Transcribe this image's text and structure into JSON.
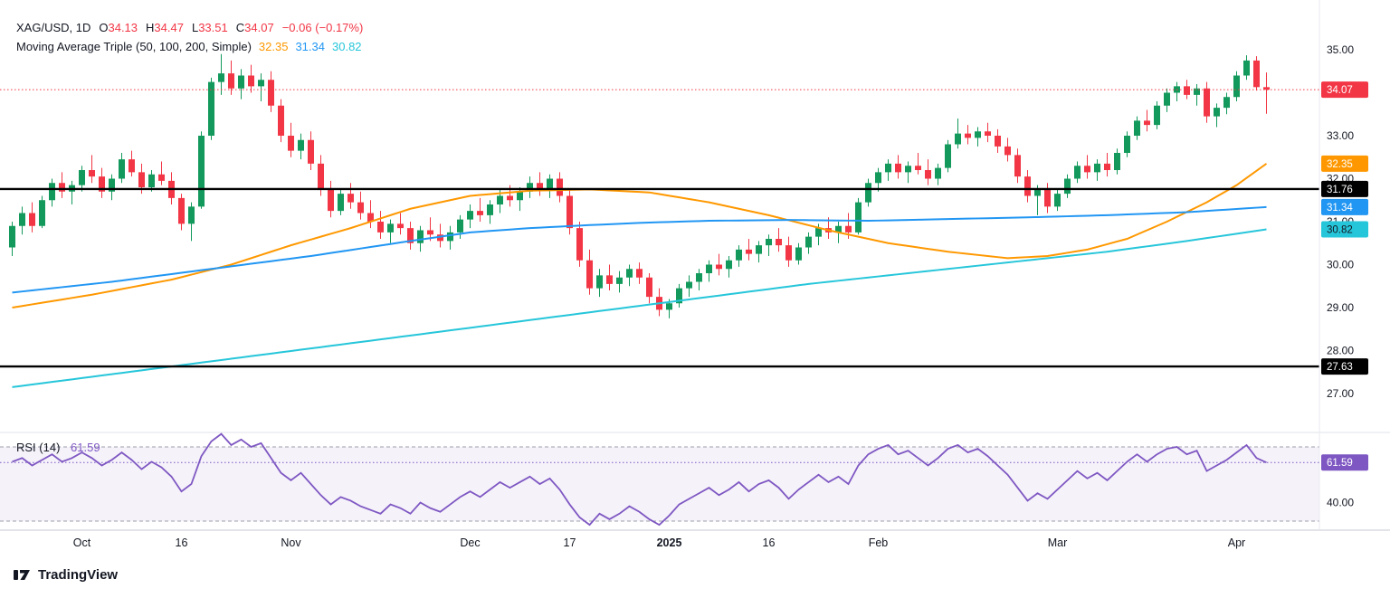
{
  "header": {
    "symbol": "XAG/USD, 1D",
    "ohlc": {
      "o_label": "O",
      "o": "34.13",
      "h_label": "H",
      "h": "34.47",
      "l_label": "L",
      "l": "33.51",
      "c_label": "C",
      "c": "34.07",
      "change": "−0.06 (−0.17%)"
    },
    "ma_label": "Moving Average Triple (50, 100, 200, Simple)",
    "ma_values": [
      "32.35",
      "31.34",
      "30.82"
    ]
  },
  "rsi_legend": {
    "label": "RSI (14)",
    "value": "61.59"
  },
  "footer": {
    "logo_text": "TradingView"
  },
  "chart_data": {
    "type": "candlestick",
    "title": "XAG/USD, 1D with Moving Average Triple (50, 100, 200, Simple) and RSI (14)",
    "price_axis_ticks": [
      35.0,
      34.0,
      33.0,
      32.0,
      31.0,
      30.0,
      29.0,
      28.0,
      27.0
    ],
    "x_labels": [
      {
        "t": "Oct",
        "i": 7
      },
      {
        "t": "16",
        "i": 17
      },
      {
        "t": "Nov",
        "i": 28
      },
      {
        "t": "Dec",
        "i": 46
      },
      {
        "t": "17",
        "i": 56
      },
      {
        "t": "2025",
        "i": 66,
        "bold": true
      },
      {
        "t": "16",
        "i": 76
      },
      {
        "t": "Feb",
        "i": 87
      },
      {
        "t": "Mar",
        "i": 105
      },
      {
        "t": "Apr",
        "i": 123
      }
    ],
    "colors": {
      "up": "#12995b",
      "down": "#f23645",
      "ma50": "#ff9800",
      "ma100": "#2196f3",
      "ma200": "#26c6da",
      "rsi": "#7e57c2",
      "level": "#000000",
      "last_price": "#f23645",
      "axis_text": "#131722"
    },
    "last_price_line": {
      "value": 34.07
    },
    "levels": [
      31.76,
      27.63
    ],
    "candles": [
      [
        30.4,
        31.0,
        30.2,
        30.9
      ],
      [
        30.9,
        31.35,
        30.7,
        31.2
      ],
      [
        31.2,
        31.45,
        30.75,
        30.9
      ],
      [
        30.9,
        31.6,
        30.85,
        31.5
      ],
      [
        31.5,
        32.0,
        31.35,
        31.9
      ],
      [
        31.9,
        32.15,
        31.55,
        31.7
      ],
      [
        31.7,
        31.95,
        31.4,
        31.85
      ],
      [
        31.85,
        32.3,
        31.7,
        32.2
      ],
      [
        32.2,
        32.55,
        31.9,
        32.05
      ],
      [
        32.05,
        32.25,
        31.55,
        31.7
      ],
      [
        31.7,
        32.1,
        31.5,
        32.0
      ],
      [
        32.0,
        32.6,
        31.9,
        32.45
      ],
      [
        32.45,
        32.65,
        32.05,
        32.15
      ],
      [
        32.15,
        32.35,
        31.65,
        31.8
      ],
      [
        31.8,
        32.2,
        31.7,
        32.1
      ],
      [
        32.1,
        32.4,
        31.85,
        31.95
      ],
      [
        31.95,
        32.15,
        31.4,
        31.55
      ],
      [
        31.55,
        31.65,
        30.8,
        30.95
      ],
      [
        30.95,
        31.45,
        30.55,
        31.35
      ],
      [
        31.35,
        33.1,
        31.3,
        33.0
      ],
      [
        33.0,
        34.35,
        32.9,
        34.25
      ],
      [
        34.25,
        34.9,
        33.95,
        34.45
      ],
      [
        34.45,
        34.75,
        33.95,
        34.1
      ],
      [
        34.1,
        34.55,
        33.85,
        34.4
      ],
      [
        34.4,
        34.65,
        34.0,
        34.15
      ],
      [
        34.15,
        34.45,
        33.8,
        34.3
      ],
      [
        34.3,
        34.5,
        33.55,
        33.7
      ],
      [
        33.7,
        33.85,
        32.85,
        33.0
      ],
      [
        33.0,
        33.3,
        32.5,
        32.65
      ],
      [
        32.65,
        33.05,
        32.45,
        32.9
      ],
      [
        32.9,
        33.1,
        32.2,
        32.35
      ],
      [
        32.35,
        32.55,
        31.6,
        31.75
      ],
      [
        31.75,
        31.95,
        31.1,
        31.25
      ],
      [
        31.25,
        31.75,
        31.15,
        31.65
      ],
      [
        31.65,
        31.9,
        31.3,
        31.45
      ],
      [
        31.45,
        31.7,
        31.05,
        31.2
      ],
      [
        31.2,
        31.5,
        30.85,
        31.0
      ],
      [
        31.0,
        31.25,
        30.6,
        30.75
      ],
      [
        30.75,
        31.05,
        30.5,
        30.95
      ],
      [
        30.95,
        31.2,
        30.7,
        30.85
      ],
      [
        30.85,
        31.0,
        30.35,
        30.5
      ],
      [
        30.5,
        30.9,
        30.3,
        30.8
      ],
      [
        30.8,
        31.1,
        30.55,
        30.7
      ],
      [
        30.7,
        30.95,
        30.4,
        30.55
      ],
      [
        30.55,
        30.9,
        30.35,
        30.75
      ],
      [
        30.75,
        31.15,
        30.6,
        31.05
      ],
      [
        31.05,
        31.4,
        30.85,
        31.25
      ],
      [
        31.25,
        31.55,
        31.0,
        31.15
      ],
      [
        31.15,
        31.5,
        30.95,
        31.4
      ],
      [
        31.4,
        31.75,
        31.2,
        31.6
      ],
      [
        31.6,
        31.85,
        31.35,
        31.5
      ],
      [
        31.5,
        31.8,
        31.25,
        31.7
      ],
      [
        31.7,
        32.05,
        31.55,
        31.9
      ],
      [
        31.9,
        32.15,
        31.6,
        31.75
      ],
      [
        31.75,
        32.1,
        31.55,
        32.0
      ],
      [
        32.0,
        32.15,
        31.45,
        31.6
      ],
      [
        31.6,
        31.75,
        30.7,
        30.85
      ],
      [
        30.85,
        31.0,
        29.95,
        30.1
      ],
      [
        30.1,
        30.35,
        29.3,
        29.45
      ],
      [
        29.45,
        29.9,
        29.25,
        29.75
      ],
      [
        29.75,
        30.0,
        29.4,
        29.55
      ],
      [
        29.55,
        29.85,
        29.35,
        29.7
      ],
      [
        29.7,
        30.0,
        29.5,
        29.9
      ],
      [
        29.9,
        30.05,
        29.55,
        29.7
      ],
      [
        29.7,
        29.8,
        29.1,
        29.25
      ],
      [
        29.25,
        29.45,
        28.8,
        28.95
      ],
      [
        28.95,
        29.2,
        28.75,
        29.1
      ],
      [
        29.1,
        29.55,
        29.0,
        29.45
      ],
      [
        29.45,
        29.75,
        29.25,
        29.6
      ],
      [
        29.6,
        29.9,
        29.4,
        29.8
      ],
      [
        29.8,
        30.1,
        29.6,
        30.0
      ],
      [
        30.0,
        30.25,
        29.75,
        29.9
      ],
      [
        29.9,
        30.2,
        29.7,
        30.1
      ],
      [
        30.1,
        30.45,
        29.95,
        30.35
      ],
      [
        30.35,
        30.6,
        30.1,
        30.25
      ],
      [
        30.25,
        30.55,
        30.05,
        30.45
      ],
      [
        30.45,
        30.7,
        30.2,
        30.6
      ],
      [
        30.6,
        30.85,
        30.3,
        30.45
      ],
      [
        30.45,
        30.65,
        29.95,
        30.1
      ],
      [
        30.1,
        30.5,
        30.0,
        30.4
      ],
      [
        30.4,
        30.75,
        30.25,
        30.65
      ],
      [
        30.65,
        30.95,
        30.45,
        30.85
      ],
      [
        30.85,
        31.1,
        30.6,
        30.75
      ],
      [
        30.75,
        31.0,
        30.5,
        30.9
      ],
      [
        30.9,
        31.2,
        30.6,
        30.75
      ],
      [
        30.75,
        31.55,
        30.7,
        31.45
      ],
      [
        31.45,
        32.0,
        31.35,
        31.9
      ],
      [
        31.9,
        32.25,
        31.7,
        32.15
      ],
      [
        32.15,
        32.45,
        31.95,
        32.35
      ],
      [
        32.35,
        32.55,
        32.0,
        32.15
      ],
      [
        32.15,
        32.4,
        31.9,
        32.3
      ],
      [
        32.3,
        32.6,
        32.1,
        32.2
      ],
      [
        32.2,
        32.45,
        31.85,
        32.0
      ],
      [
        32.0,
        32.35,
        31.85,
        32.25
      ],
      [
        32.25,
        32.9,
        32.15,
        32.8
      ],
      [
        32.8,
        33.4,
        32.7,
        33.05
      ],
      [
        33.05,
        33.25,
        32.8,
        32.95
      ],
      [
        32.95,
        33.2,
        32.75,
        33.1
      ],
      [
        33.1,
        33.3,
        32.85,
        33.0
      ],
      [
        33.0,
        33.15,
        32.6,
        32.75
      ],
      [
        32.75,
        32.95,
        32.4,
        32.55
      ],
      [
        32.55,
        32.7,
        31.9,
        32.05
      ],
      [
        32.05,
        32.2,
        31.45,
        31.6
      ],
      [
        31.6,
        31.85,
        31.15,
        31.75
      ],
      [
        31.75,
        31.9,
        31.2,
        31.35
      ],
      [
        31.35,
        31.75,
        31.25,
        31.65
      ],
      [
        31.65,
        32.1,
        31.55,
        32.0
      ],
      [
        32.0,
        32.4,
        31.9,
        32.3
      ],
      [
        32.3,
        32.55,
        32.0,
        32.15
      ],
      [
        32.15,
        32.45,
        31.95,
        32.35
      ],
      [
        32.35,
        32.6,
        32.05,
        32.2
      ],
      [
        32.2,
        32.7,
        32.1,
        32.6
      ],
      [
        32.6,
        33.1,
        32.5,
        33.0
      ],
      [
        33.0,
        33.45,
        32.9,
        33.35
      ],
      [
        33.35,
        33.6,
        33.1,
        33.25
      ],
      [
        33.25,
        33.8,
        33.15,
        33.7
      ],
      [
        33.7,
        34.1,
        33.55,
        34.0
      ],
      [
        34.0,
        34.25,
        33.8,
        34.15
      ],
      [
        34.15,
        34.3,
        33.85,
        33.95
      ],
      [
        33.95,
        34.2,
        33.7,
        34.1
      ],
      [
        34.1,
        34.25,
        33.3,
        33.45
      ],
      [
        33.45,
        33.75,
        33.2,
        33.65
      ],
      [
        33.65,
        34.0,
        33.5,
        33.9
      ],
      [
        33.9,
        34.5,
        33.8,
        34.4
      ],
      [
        34.4,
        34.87,
        34.3,
        34.75
      ],
      [
        34.75,
        34.85,
        34.05,
        34.13
      ],
      [
        34.13,
        34.47,
        33.51,
        34.07
      ]
    ],
    "ma": [
      {
        "name": "SMA 50",
        "period": 50,
        "current": 32.35,
        "color_key": "ma50",
        "points": [
          [
            0,
            29.0
          ],
          [
            8,
            29.3
          ],
          [
            16,
            29.65
          ],
          [
            22,
            30.0
          ],
          [
            28,
            30.45
          ],
          [
            34,
            30.85
          ],
          [
            40,
            31.3
          ],
          [
            46,
            31.6
          ],
          [
            52,
            31.72
          ],
          [
            58,
            31.75
          ],
          [
            64,
            31.68
          ],
          [
            70,
            31.45
          ],
          [
            76,
            31.15
          ],
          [
            82,
            30.8
          ],
          [
            88,
            30.5
          ],
          [
            94,
            30.3
          ],
          [
            100,
            30.15
          ],
          [
            104,
            30.2
          ],
          [
            108,
            30.35
          ],
          [
            112,
            30.6
          ],
          [
            116,
            31.0
          ],
          [
            120,
            31.45
          ],
          [
            123,
            31.85
          ],
          [
            126,
            32.35
          ]
        ]
      },
      {
        "name": "SMA 100",
        "period": 100,
        "current": 31.34,
        "color_key": "ma100",
        "points": [
          [
            0,
            29.35
          ],
          [
            10,
            29.6
          ],
          [
            20,
            29.9
          ],
          [
            30,
            30.2
          ],
          [
            40,
            30.55
          ],
          [
            46,
            30.75
          ],
          [
            52,
            30.85
          ],
          [
            58,
            30.92
          ],
          [
            64,
            30.98
          ],
          [
            70,
            31.02
          ],
          [
            78,
            31.04
          ],
          [
            86,
            31.02
          ],
          [
            94,
            31.06
          ],
          [
            102,
            31.1
          ],
          [
            110,
            31.15
          ],
          [
            118,
            31.22
          ],
          [
            126,
            31.34
          ]
        ]
      },
      {
        "name": "SMA 200",
        "period": 200,
        "current": 30.82,
        "color_key": "ma200",
        "points": [
          [
            0,
            27.15
          ],
          [
            10,
            27.45
          ],
          [
            20,
            27.75
          ],
          [
            30,
            28.05
          ],
          [
            40,
            28.35
          ],
          [
            50,
            28.65
          ],
          [
            60,
            28.95
          ],
          [
            70,
            29.25
          ],
          [
            80,
            29.55
          ],
          [
            90,
            29.8
          ],
          [
            100,
            30.05
          ],
          [
            110,
            30.3
          ],
          [
            118,
            30.55
          ],
          [
            126,
            30.82
          ]
        ]
      }
    ],
    "rsi": {
      "period": 14,
      "current": 61.59,
      "bands": [
        70,
        30
      ],
      "axis_ticks": [
        40.0
      ],
      "values": [
        62,
        64,
        60,
        63,
        66,
        62,
        64,
        67,
        64,
        60,
        63,
        67,
        63,
        58,
        62,
        59,
        54,
        46,
        50,
        65,
        73,
        77,
        71,
        74,
        70,
        72,
        64,
        56,
        52,
        56,
        50,
        44,
        39,
        43,
        41,
        38,
        36,
        34,
        39,
        37,
        34,
        40,
        37,
        35,
        39,
        43,
        46,
        43,
        47,
        51,
        48,
        51,
        54,
        50,
        53,
        47,
        39,
        32,
        28,
        34,
        31,
        34,
        38,
        35,
        31,
        28,
        33,
        39,
        42,
        45,
        48,
        44,
        47,
        51,
        46,
        50,
        52,
        48,
        42,
        47,
        51,
        55,
        51,
        54,
        50,
        60,
        66,
        69,
        71,
        66,
        68,
        64,
        60,
        64,
        69,
        71,
        67,
        69,
        65,
        60,
        55,
        48,
        41,
        45,
        42,
        47,
        52,
        57,
        53,
        56,
        52,
        57,
        62,
        66,
        62,
        66,
        69,
        70,
        66,
        68,
        57,
        60,
        63,
        67,
        71,
        64,
        61.59
      ]
    }
  }
}
